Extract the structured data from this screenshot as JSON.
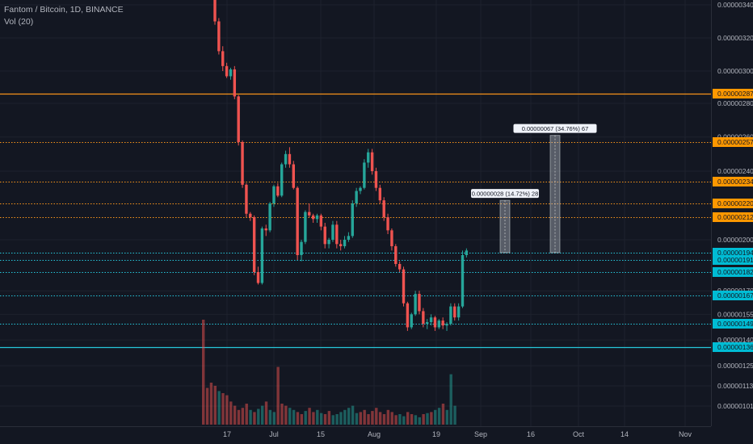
{
  "chart_data": {
    "type": "candlestick",
    "symbol_line": "Fantom / Bitcoin, 1D, BINANCE",
    "indicator_line": "Vol (20)",
    "y_axis_ticks": [
      "0.00000340",
      "0.00000320",
      "0.00000300",
      "0.00000280",
      "0.00000260",
      "0.00000240",
      "0.00000200",
      "0.00000170",
      "0.00000155",
      "0.00000140",
      "0.00000125",
      "0.00000113",
      "0.00000101"
    ],
    "x_axis_ticks": [
      "17",
      "Jul",
      "15",
      "Aug",
      "19",
      "Sep",
      "16",
      "Oct",
      "14",
      "Nov"
    ],
    "horizontal_levels": [
      {
        "label": "0.00000287",
        "color": "#f7931a",
        "style": "solid"
      },
      {
        "label": "0.00000257",
        "color": "#f7931a",
        "style": "dotted"
      },
      {
        "label": "0.00000234",
        "color": "#f7931a",
        "style": "dotted"
      },
      {
        "label": "0.00000220",
        "color": "#f7931a",
        "style": "dotted"
      },
      {
        "label": "0.00000212",
        "color": "#f7931a",
        "style": "dotted"
      },
      {
        "label": "0.00000194",
        "color": "#26c6da",
        "style": "dotted"
      },
      {
        "label": "0.00000191",
        "color": "#26c6da",
        "style": "dotted"
      },
      {
        "label": "0.00000182",
        "color": "#26c6da",
        "style": "dotted"
      },
      {
        "label": "0.00000167",
        "color": "#26c6da",
        "style": "dotted"
      },
      {
        "label": "0.00000149",
        "color": "#26c6da",
        "style": "dotted"
      },
      {
        "label": "0.00000136",
        "color": "#26c6da",
        "style": "solid"
      }
    ],
    "annotations": [
      {
        "label": "0.00000028 (14.72%) 28",
        "base": 1.94,
        "top": 2.22
      },
      {
        "label": "0.00000067 (34.76%) 67",
        "base": 1.94,
        "top": 2.61
      }
    ],
    "candles": [
      [
        3.45,
        3.55,
        3.28,
        3.3
      ],
      [
        3.3,
        3.32,
        3.1,
        3.12
      ],
      [
        3.12,
        3.15,
        3.0,
        3.03
      ],
      [
        3.03,
        3.05,
        2.96,
        2.97
      ],
      [
        2.97,
        3.02,
        2.95,
        3.01
      ],
      [
        3.01,
        3.03,
        2.83,
        2.85
      ],
      [
        2.85,
        2.86,
        2.55,
        2.57
      ],
      [
        2.57,
        2.58,
        2.3,
        2.32
      ],
      [
        2.32,
        2.33,
        2.12,
        2.14
      ],
      [
        2.14,
        2.15,
        2.1,
        2.12
      ],
      [
        2.12,
        2.13,
        1.8,
        1.82
      ],
      [
        1.82,
        1.86,
        1.74,
        1.75
      ],
      [
        1.75,
        2.07,
        1.74,
        2.06
      ],
      [
        2.06,
        2.08,
        2.02,
        2.05
      ],
      [
        2.05,
        2.21,
        2.04,
        2.2
      ],
      [
        2.2,
        2.32,
        2.18,
        2.31
      ],
      [
        2.31,
        2.33,
        2.24,
        2.25
      ],
      [
        2.25,
        2.45,
        2.24,
        2.44
      ],
      [
        2.44,
        2.52,
        2.42,
        2.5
      ],
      [
        2.5,
        2.54,
        2.42,
        2.44
      ],
      [
        2.44,
        2.46,
        2.29,
        2.3
      ],
      [
        2.3,
        2.31,
        1.91,
        1.93
      ],
      [
        1.93,
        2.0,
        1.9,
        1.99
      ],
      [
        1.99,
        2.16,
        1.98,
        2.15
      ],
      [
        2.15,
        2.2,
        2.12,
        2.13
      ],
      [
        2.13,
        2.14,
        2.09,
        2.11
      ],
      [
        2.11,
        2.14,
        2.09,
        2.13
      ],
      [
        2.13,
        2.14,
        2.05,
        2.07
      ],
      [
        2.07,
        2.09,
        1.96,
        1.98
      ],
      [
        1.98,
        2.01,
        1.96,
        2.0
      ],
      [
        2.0,
        2.1,
        1.99,
        2.08
      ],
      [
        2.08,
        2.1,
        1.96,
        1.98
      ],
      [
        1.98,
        2.0,
        1.95,
        1.97
      ],
      [
        1.97,
        2.02,
        1.96,
        2.0
      ],
      [
        2.0,
        2.04,
        1.99,
        2.02
      ],
      [
        2.02,
        2.22,
        2.01,
        2.2
      ],
      [
        2.2,
        2.3,
        2.18,
        2.28
      ],
      [
        2.28,
        2.31,
        2.26,
        2.3
      ],
      [
        2.3,
        2.47,
        2.29,
        2.45
      ],
      [
        2.45,
        2.53,
        2.42,
        2.51
      ],
      [
        2.51,
        2.53,
        2.38,
        2.4
      ],
      [
        2.4,
        2.42,
        2.28,
        2.3
      ],
      [
        2.3,
        2.32,
        2.2,
        2.22
      ],
      [
        2.22,
        2.24,
        2.1,
        2.12
      ],
      [
        2.12,
        2.14,
        2.03,
        2.05
      ],
      [
        2.05,
        2.06,
        1.95,
        1.97
      ],
      [
        1.97,
        1.98,
        1.86,
        1.88
      ],
      [
        1.88,
        1.9,
        1.82,
        1.84
      ],
      [
        1.84,
        1.86,
        1.6,
        1.62
      ],
      [
        1.62,
        1.63,
        1.45,
        1.47
      ],
      [
        1.47,
        1.56,
        1.46,
        1.55
      ],
      [
        1.55,
        1.7,
        1.54,
        1.68
      ],
      [
        1.68,
        1.7,
        1.55,
        1.57
      ],
      [
        1.57,
        1.59,
        1.47,
        1.49
      ],
      [
        1.49,
        1.52,
        1.46,
        1.5
      ],
      [
        1.5,
        1.55,
        1.48,
        1.53
      ],
      [
        1.53,
        1.54,
        1.45,
        1.47
      ],
      [
        1.47,
        1.52,
        1.46,
        1.51
      ],
      [
        1.51,
        1.53,
        1.46,
        1.48
      ],
      [
        1.48,
        1.5,
        1.45,
        1.49
      ],
      [
        1.49,
        1.62,
        1.48,
        1.6
      ],
      [
        1.6,
        1.62,
        1.51,
        1.53
      ],
      [
        1.53,
        1.62,
        1.51,
        1.6
      ],
      [
        1.6,
        1.95,
        1.59,
        1.93
      ],
      [
        1.93,
        1.96,
        1.92,
        1.95
      ]
    ],
    "volumes": [
      1.0,
      0.35,
      0.4,
      0.37,
      0.32,
      0.3,
      0.28,
      0.22,
      0.18,
      0.14,
      0.16,
      0.2,
      0.14,
      0.12,
      0.15,
      0.18,
      0.22,
      0.14,
      0.12,
      0.55,
      0.2,
      0.18,
      0.16,
      0.14,
      0.12,
      0.1,
      0.13,
      0.16,
      0.12,
      0.14,
      0.11,
      0.1,
      0.13,
      0.09,
      0.1,
      0.12,
      0.14,
      0.16,
      0.18,
      0.11,
      0.12,
      0.14,
      0.1,
      0.13,
      0.16,
      0.12,
      0.1,
      0.14,
      0.12,
      0.09,
      0.1,
      0.08,
      0.12,
      0.1,
      0.09,
      0.07,
      0.1,
      0.11,
      0.12,
      0.14,
      0.16,
      0.2,
      0.14,
      0.48,
      0.18
    ]
  }
}
